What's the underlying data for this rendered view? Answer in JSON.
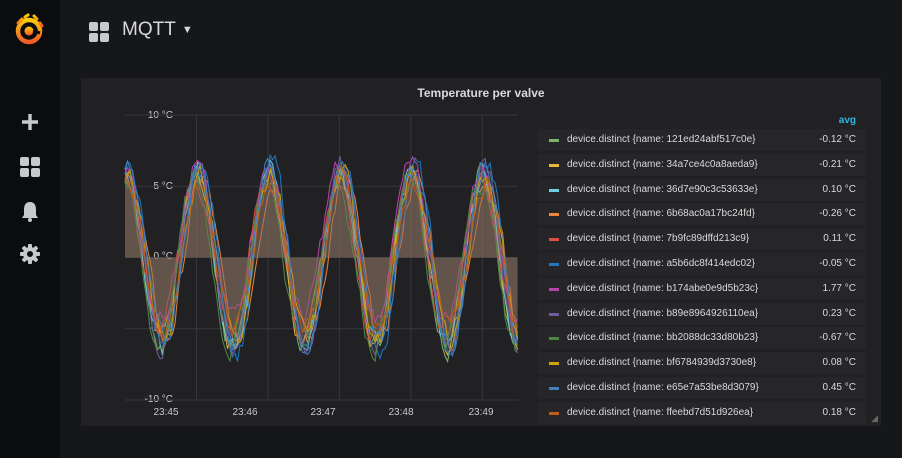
{
  "app": {
    "dashboard_title": "MQTT"
  },
  "sidebar": {
    "icons": [
      "grafana-logo-icon",
      "plus-icon",
      "dashboards-icon",
      "bell-icon",
      "gear-icon"
    ]
  },
  "panel": {
    "title": "Temperature per valve",
    "legend_header": "avg"
  },
  "chart_data": {
    "type": "line",
    "title": "Temperature per valve",
    "y_unit": "°C",
    "ylim": [
      -10,
      10
    ],
    "y_ticks": [
      "10 °C",
      "5 °C",
      "0 °C",
      "-5 °C",
      "-10 °C"
    ],
    "x_ticks": [
      "23:45",
      "23:46",
      "23:47",
      "23:48",
      "23:49"
    ],
    "x_range_minutes": [
      23.44,
      23.495
    ],
    "grid": true,
    "fill_to_zero": true,
    "cycle_peaks_minutes": [
      "23:45",
      "23:46",
      "23:47",
      "23:48",
      "23:49"
    ],
    "peak_value_approx": 6,
    "trough_value_approx": -6,
    "series": [
      {
        "name": "device.distinct {name: 121ed24abf517c0e}",
        "avg": "-0.12 °C",
        "color": "#7eb26d"
      },
      {
        "name": "device.distinct {name: 34a7ce4c0a8aeda9}",
        "avg": "-0.21 °C",
        "color": "#eab839"
      },
      {
        "name": "device.distinct {name: 36d7e90c3c53633e}",
        "avg": "0.10 °C",
        "color": "#6ed0e0"
      },
      {
        "name": "device.distinct {name: 6b68ac0a17bc24fd}",
        "avg": "-0.26 °C",
        "color": "#ef843c"
      },
      {
        "name": "device.distinct {name: 7b9fc89dffd213c9}",
        "avg": "0.11 °C",
        "color": "#e24d42"
      },
      {
        "name": "device.distinct {name: a5b6dc8f414edc02}",
        "avg": "-0.05 °C",
        "color": "#1f78c1"
      },
      {
        "name": "device.distinct {name: b174abe0e9d5b23c}",
        "avg": "1.77 °C",
        "color": "#ba43a9"
      },
      {
        "name": "device.distinct {name: b89e8964926110ea}",
        "avg": "0.23 °C",
        "color": "#705da0"
      },
      {
        "name": "device.distinct {name: bb2088dc33d80b23}",
        "avg": "-0.67 °C",
        "color": "#508642"
      },
      {
        "name": "device.distinct {name: bf6784939d3730e8}",
        "avg": "0.08 °C",
        "color": "#cca300"
      },
      {
        "name": "device.distinct {name: e65e7a53be8d3079}",
        "avg": "0.45 °C",
        "color": "#447ebc"
      },
      {
        "name": "device.distinct {name: ffeebd7d51d926ea}",
        "avg": "0.18 °C",
        "color": "#c15c17"
      }
    ]
  }
}
